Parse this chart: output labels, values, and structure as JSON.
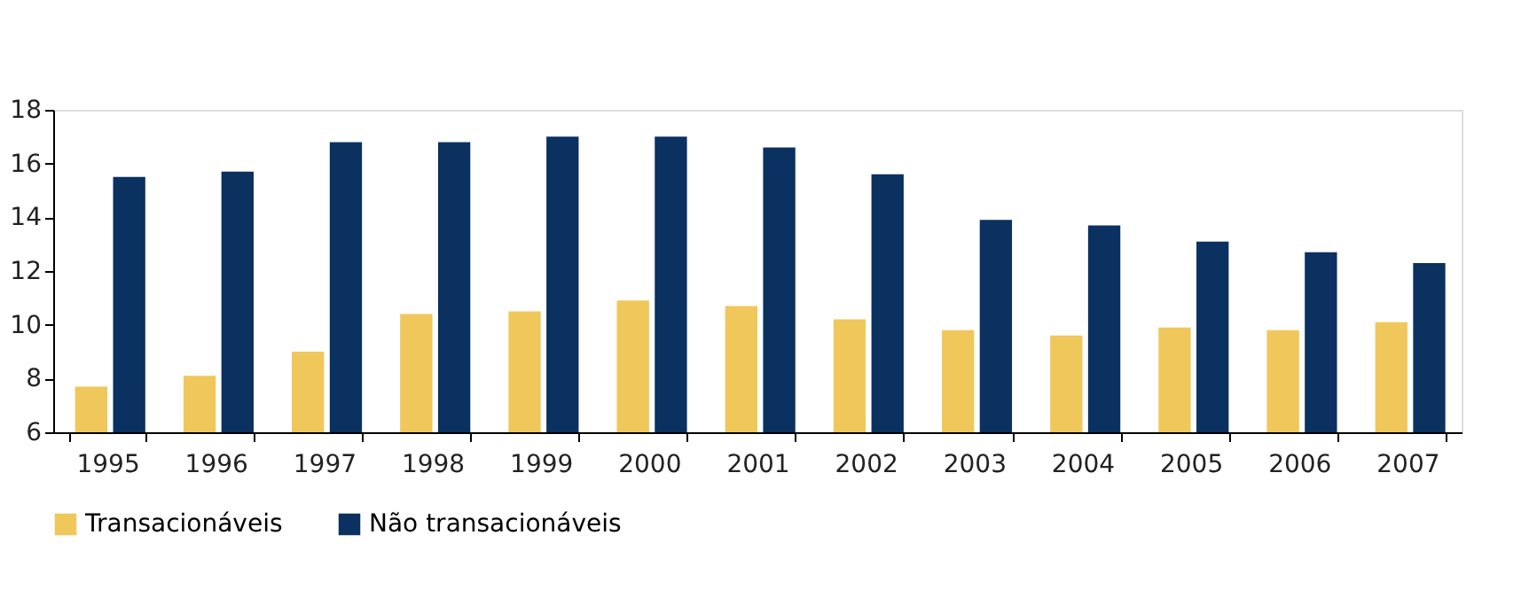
{
  "chart_data": {
    "type": "bar",
    "categories": [
      "1995",
      "1996",
      "1997",
      "1998",
      "1999",
      "2000",
      "2001",
      "2002",
      "2003",
      "2004",
      "2005",
      "2006",
      "2007"
    ],
    "series": [
      {
        "name": "Transacionáveis",
        "color": "#f0c75a",
        "values": [
          7.7,
          8.1,
          9.0,
          10.4,
          10.5,
          10.9,
          10.7,
          10.2,
          9.8,
          9.6,
          9.9,
          9.8,
          10.1
        ]
      },
      {
        "name": "Não transacionáveis",
        "color": "#0a3160",
        "values": [
          15.5,
          15.7,
          16.8,
          16.8,
          17.0,
          17.0,
          16.6,
          15.6,
          13.9,
          13.7,
          13.1,
          12.7,
          12.3
        ]
      }
    ],
    "ylim": [
      6,
      18
    ],
    "yticks": [
      6,
      8,
      10,
      12,
      14,
      16,
      18
    ],
    "grid": false,
    "legend": "bottom"
  }
}
